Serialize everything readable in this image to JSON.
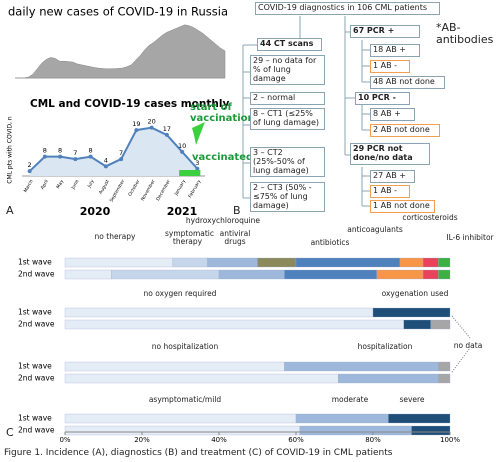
{
  "chart_data": [
    {
      "type": "area",
      "title": "daily new cases of COVID-19 in Russia",
      "color": "#a6a6a6",
      "ylim": [
        0,
        30000
      ],
      "values": [
        0,
        0,
        100,
        500,
        2000,
        5000,
        8000,
        10000,
        11000,
        10500,
        9000,
        9000,
        8800,
        8500,
        7500,
        7000,
        6500,
        6000,
        5500,
        5200,
        5000,
        4900,
        5000,
        5100,
        5300,
        6000,
        7000,
        9500,
        12000,
        15000,
        17500,
        19000,
        21000,
        23000,
        24500,
        25500,
        26500,
        27500,
        28500,
        28000,
        27000,
        25500,
        24000,
        22000,
        20000,
        18000,
        16000,
        14500
      ]
    },
    {
      "type": "line",
      "title": "CML and COVID-19 cases monthly",
      "y_label": "CML pts with COVID, n",
      "color": "#4f81bd",
      "ylim": [
        0,
        24
      ],
      "categories": [
        "March",
        "April",
        "May",
        "June",
        "July",
        "August",
        "September",
        "October",
        "November",
        "December",
        "January",
        "February"
      ],
      "values": [
        2,
        8,
        8,
        7,
        8,
        4,
        7,
        19,
        20,
        17,
        10,
        3
      ],
      "annotations": [
        "2020",
        "2021",
        "start of vaccination",
        "vaccinated"
      ]
    },
    {
      "type": "stacked_barh",
      "categories": [
        "1st wave",
        "2nd wave"
      ],
      "xlim": [
        0,
        100
      ],
      "series": [
        {
          "name": "no therapy",
          "color": "#e4ecf6",
          "values": [
            28,
            12
          ]
        },
        {
          "name": "symptomatic therapy",
          "color": "#c6d6ea",
          "values": [
            9,
            28
          ]
        },
        {
          "name": "antiviral drugs",
          "color": "#9db8da",
          "values": [
            13,
            17
          ]
        },
        {
          "name": "hydroxychloroquine",
          "color": "#8c8a5c",
          "values": [
            10,
            0
          ]
        },
        {
          "name": "antibiotics",
          "color": "#4f81bd",
          "values": [
            27,
            24
          ]
        },
        {
          "name": "anticoagulants",
          "color": "#f79646",
          "values": [
            6,
            12
          ]
        },
        {
          "name": "corticosteroids",
          "color": "#e8435a",
          "values": [
            4,
            4
          ]
        },
        {
          "name": "IL-6 inhibitor",
          "color": "#3cb043",
          "values": [
            3,
            3
          ]
        }
      ]
    },
    {
      "type": "stacked_barh",
      "categories": [
        "1st wave",
        "2nd wave"
      ],
      "xlim": [
        0,
        100
      ],
      "series": [
        {
          "name": "no oxygen required",
          "color": "#e4ecf6",
          "values": [
            80,
            88
          ]
        },
        {
          "name": "oxygenation used",
          "color": "#1f4e79",
          "values": [
            20,
            7
          ]
        },
        {
          "name": "no data",
          "color": "#a6a6a6",
          "values": [
            0,
            5
          ]
        }
      ]
    },
    {
      "type": "stacked_barh",
      "categories": [
        "1st wave",
        "2nd wave"
      ],
      "xlim": [
        0,
        100
      ],
      "series": [
        {
          "name": "no hospitalization",
          "color": "#e4ecf6",
          "values": [
            57,
            71
          ]
        },
        {
          "name": "hospitalization",
          "color": "#9db8da",
          "values": [
            40,
            26
          ]
        },
        {
          "color": "#a6a6a6",
          "values": [
            3,
            3
          ]
        }
      ]
    },
    {
      "type": "stacked_barh",
      "categories": [
        "1st wave",
        "2nd wave"
      ],
      "xlim": [
        0,
        100
      ],
      "series": [
        {
          "name": "asymptomatic/mild",
          "color": "#e4ecf6",
          "values": [
            60,
            61
          ]
        },
        {
          "name": "moderate",
          "color": "#9db8da",
          "values": [
            24,
            29
          ]
        },
        {
          "name": "severe",
          "color": "#1f4e79",
          "values": [
            16,
            10
          ]
        }
      ],
      "xticks": [
        {
          "value": 0,
          "label": "0%"
        },
        {
          "value": 20,
          "label": "20%"
        },
        {
          "value": 40,
          "label": "40%"
        },
        {
          "value": 60,
          "label": "60%"
        },
        {
          "value": 80,
          "label": "80%"
        },
        {
          "value": 100,
          "label": "100%"
        }
      ]
    }
  ],
  "diagram": {
    "note": "*AB- antibodies",
    "nodes": [
      {
        "label": "COVID-19 diagnostics in 106 CML patients"
      },
      {
        "label": "44 CT scans"
      },
      {
        "label": "29 – no data for % of lung damage"
      },
      {
        "label": "2 – normal"
      },
      {
        "label": "8 – CT1 (≤25% of lung damage)"
      },
      {
        "label": "3 – CT2 (25%-50% of lung damage)"
      },
      {
        "label": "2 – CT3 (50% - ≤75% of lung damage)"
      },
      {
        "label": "67 PCR +"
      },
      {
        "label": "18 AB +"
      },
      {
        "label": "1 AB -"
      },
      {
        "label": "48 AB not done"
      },
      {
        "label": "10 PCR -"
      },
      {
        "label": "8 AB +"
      },
      {
        "label": "2 AB not done"
      },
      {
        "label": "29 PCR not done/no data"
      },
      {
        "label": "27 AB +"
      },
      {
        "label": "1 AB -"
      },
      {
        "label": "1 AB not done"
      }
    ]
  },
  "panel_labels": [
    "A",
    "B",
    "C"
  ],
  "caption": "Figure 1. Incidence (A), diagnostics (B) and treatment (C) of COVID-19 in CML patients"
}
